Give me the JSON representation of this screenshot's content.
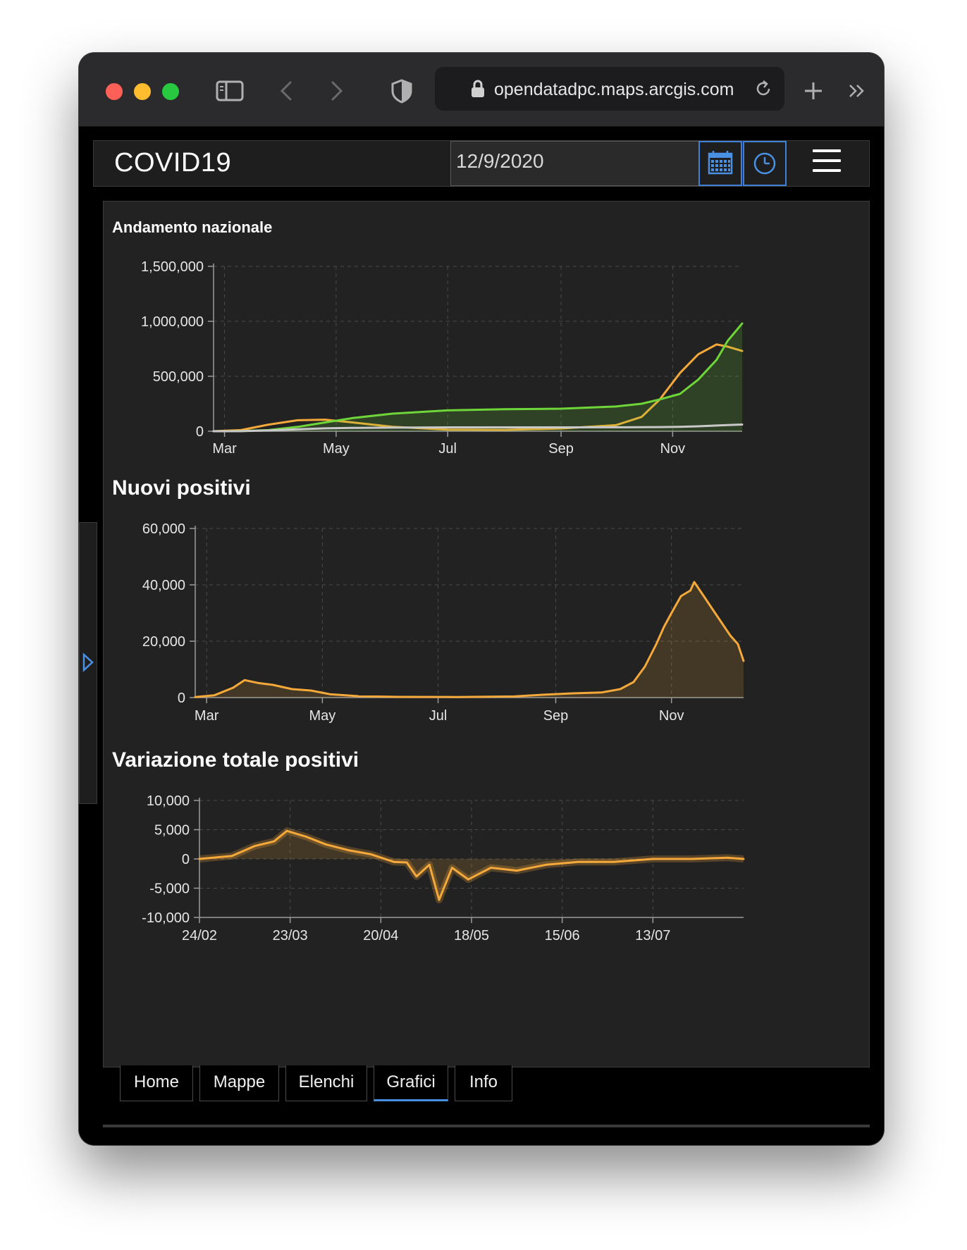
{
  "browser": {
    "url": "opendatadpc.maps.arcgis.com",
    "icons": [
      "sidebar-icon",
      "back-icon",
      "forward-icon",
      "shield-icon",
      "lock-icon",
      "reload-icon",
      "new-tab-icon",
      "more-icon"
    ]
  },
  "header": {
    "title": "COVID19",
    "date_value": "12/9/2020",
    "icons": [
      "calendar-icon",
      "clock-icon",
      "menu-icon"
    ],
    "accent_color": "#3f7fd6"
  },
  "charts": {
    "andamento": {
      "title": "Andamento nazionale"
    },
    "nuovi": {
      "title": "Nuovi positivi"
    },
    "variazione": {
      "title": "Variazione totale positivi"
    }
  },
  "tabs": {
    "home": "Home",
    "mappe": "Mappe",
    "elenchi": "Elenchi",
    "grafici": "Grafici",
    "info": "Info",
    "active": "Grafici"
  },
  "chart_data": [
    {
      "type": "line",
      "title": "Andamento nazionale",
      "x_ticks": [
        "Mar",
        "May",
        "Jul",
        "Sep",
        "Nov"
      ],
      "y_ticks": [
        "0",
        "500,000",
        "1,000,000",
        "1,500,000"
      ],
      "ylim": [
        0,
        1500000
      ],
      "grid": true,
      "x": [
        "2020-02-24",
        "2020-03-10",
        "2020-03-25",
        "2020-04-10",
        "2020-04-25",
        "2020-05-10",
        "2020-06-01",
        "2020-07-01",
        "2020-08-01",
        "2020-09-01",
        "2020-10-01",
        "2020-10-15",
        "2020-10-25",
        "2020-11-05",
        "2020-11-15",
        "2020-11-25",
        "2020-12-01",
        "2020-12-09"
      ],
      "series": [
        {
          "color": "#f5a93a",
          "values": [
            0,
            10000,
            60000,
            100000,
            105000,
            80000,
            40000,
            15000,
            12000,
            25000,
            55000,
            130000,
            290000,
            530000,
            700000,
            790000,
            770000,
            730000
          ]
        },
        {
          "color": "#6fd63a",
          "values": [
            0,
            2000,
            10000,
            40000,
            80000,
            120000,
            160000,
            190000,
            200000,
            205000,
            225000,
            250000,
            290000,
            340000,
            470000,
            650000,
            820000,
            980000
          ]
        },
        {
          "color": "#c8c8c8",
          "values": [
            0,
            800,
            7000,
            18000,
            26000,
            30000,
            33000,
            35000,
            35000,
            35500,
            36000,
            36500,
            37500,
            40000,
            45000,
            52000,
            56000,
            61000
          ]
        }
      ]
    },
    {
      "type": "area",
      "title": "Nuovi positivi",
      "x_ticks": [
        "Mar",
        "May",
        "Jul",
        "Sep",
        "Nov"
      ],
      "y_ticks": [
        "0",
        "20,000",
        "40,000",
        "60,000"
      ],
      "ylim": [
        0,
        60000
      ],
      "grid": true,
      "x": [
        "2020-02-24",
        "2020-03-05",
        "2020-03-15",
        "2020-03-21",
        "2020-03-28",
        "2020-04-05",
        "2020-04-15",
        "2020-04-25",
        "2020-05-05",
        "2020-05-20",
        "2020-06-10",
        "2020-07-10",
        "2020-08-10",
        "2020-08-25",
        "2020-09-10",
        "2020-09-25",
        "2020-10-05",
        "2020-10-12",
        "2020-10-18",
        "2020-10-24",
        "2020-10-28",
        "2020-11-01",
        "2020-11-06",
        "2020-11-11",
        "2020-11-13",
        "2020-11-18",
        "2020-11-22",
        "2020-11-27",
        "2020-12-02",
        "2020-12-06",
        "2020-12-09"
      ],
      "series": [
        {
          "color": "#f5a93a",
          "values": [
            200,
            800,
            3500,
            6200,
            5200,
            4500,
            3000,
            2500,
            1200,
            500,
            250,
            200,
            400,
            1000,
            1500,
            1800,
            3000,
            5500,
            11000,
            19000,
            25000,
            30000,
            36000,
            38000,
            41000,
            36000,
            32000,
            27000,
            22000,
            19000,
            13000
          ]
        }
      ]
    },
    {
      "type": "area",
      "title": "Variazione totale positivi",
      "x_ticks": [
        "24/02",
        "23/03",
        "20/04",
        "18/05",
        "15/06",
        "13/07"
      ],
      "y_ticks": [
        "-10,000",
        "-5,000",
        "0",
        "5,000",
        "10,000"
      ],
      "ylim": [
        -10000,
        10000
      ],
      "grid": true,
      "x": [
        "2020-02-24",
        "2020-03-05",
        "2020-03-12",
        "2020-03-18",
        "2020-03-22",
        "2020-03-28",
        "2020-04-03",
        "2020-04-10",
        "2020-04-17",
        "2020-04-24",
        "2020-04-28",
        "2020-05-01",
        "2020-05-05",
        "2020-05-08",
        "2020-05-12",
        "2020-05-17",
        "2020-05-24",
        "2020-06-01",
        "2020-06-10",
        "2020-06-20",
        "2020-07-01",
        "2020-07-13",
        "2020-07-25",
        "2020-08-05",
        "2020-08-10"
      ],
      "series": [
        {
          "color": "#f5a93a",
          "values": [
            0,
            500,
            2200,
            3000,
            4800,
            3800,
            2500,
            1500,
            800,
            -500,
            -600,
            -3000,
            -1000,
            -7000,
            -1500,
            -3500,
            -1500,
            -2000,
            -1000,
            -500,
            -500,
            0,
            0,
            200,
            0
          ]
        }
      ]
    }
  ]
}
